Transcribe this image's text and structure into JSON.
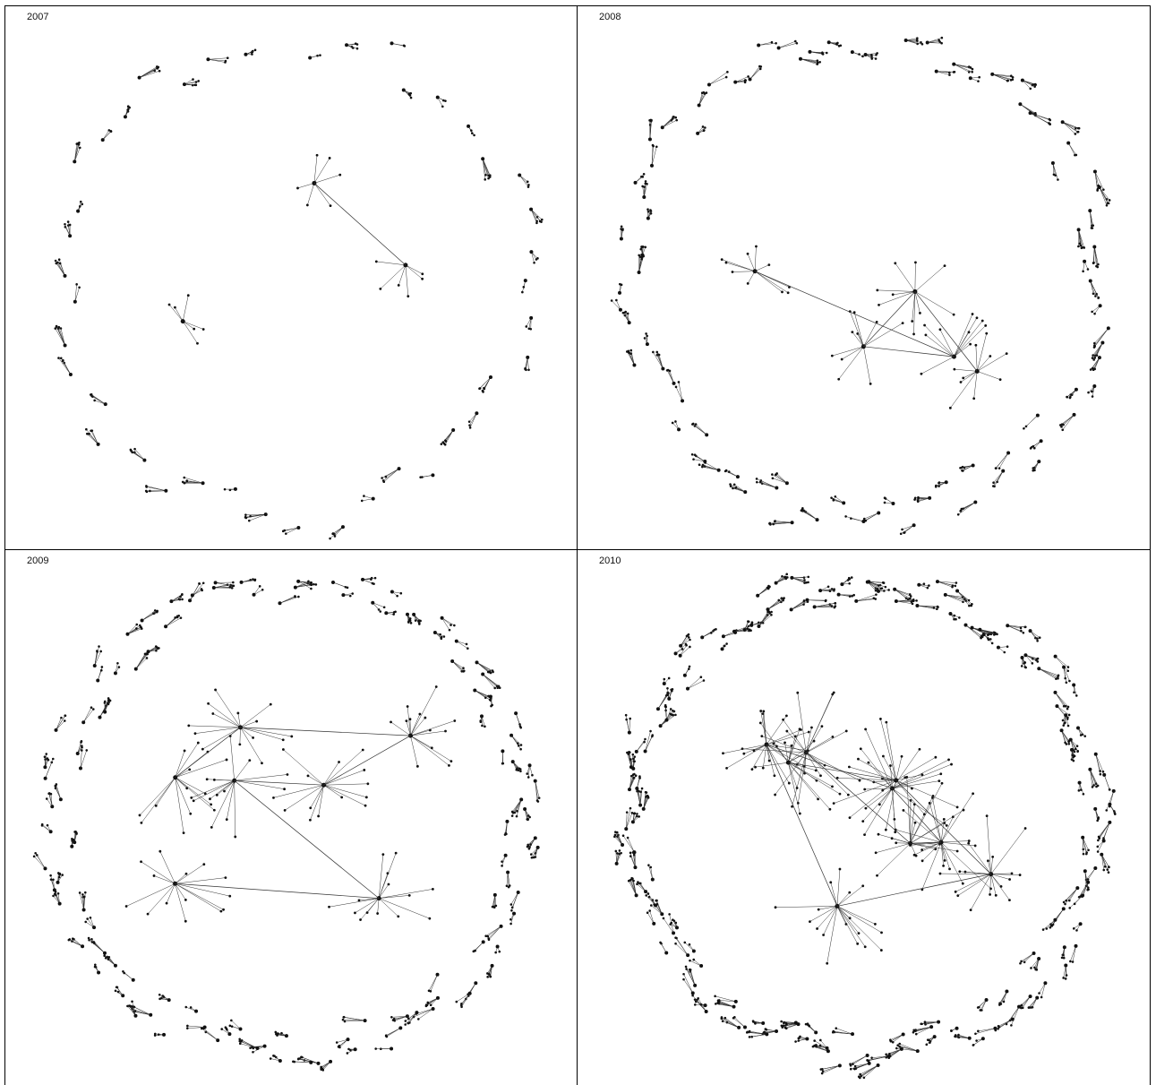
{
  "panels": [
    {
      "year": "2007",
      "clusters": 42
    },
    {
      "year": "2008",
      "clusters": 80
    },
    {
      "year": "2009",
      "clusters": 110
    },
    {
      "year": "2010",
      "clusters": 150
    }
  ],
  "colors": {
    "node": "#111111",
    "edge": "#333333",
    "border": "#000000"
  }
}
